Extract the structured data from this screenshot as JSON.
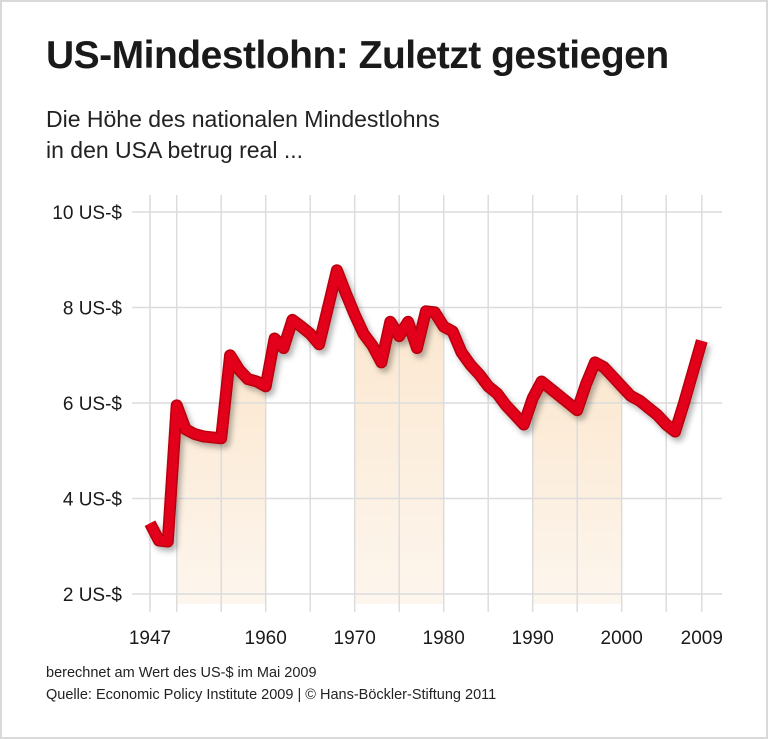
{
  "title": "US-Mindestlohn: Zuletzt gestiegen",
  "subtitle_lines": [
    "Die Höhe des nationalen Mindestlohns",
    "in den USA betrug real ..."
  ],
  "footer": {
    "note": "berechnet am Wert des US-$ im Mai 2009",
    "source": "Quelle: Economic Policy Institute 2009 | © Hans-Böckler-Stiftung 2011"
  },
  "colors": {
    "line": "#e2001a",
    "shade": "#fdeedd",
    "grid": "#dcdcdc"
  },
  "chart_data": {
    "type": "line",
    "ylim": [
      2,
      10
    ],
    "yticks": [
      2,
      4,
      6,
      8,
      10
    ],
    "ytick_labels": [
      "2 US-$",
      "4 US-$",
      "6 US-$",
      "8 US-$",
      "10 US-$"
    ],
    "xlim": [
      1947,
      2009
    ],
    "xtick_labels": [
      "1947",
      "1960",
      "1970",
      "1980",
      "1990",
      "2000",
      "2009"
    ],
    "xticks": [
      1947,
      1960,
      1970,
      1980,
      1990,
      2000,
      2009
    ],
    "grid_x": [
      1947,
      1950,
      1955,
      1960,
      1965,
      1970,
      1975,
      1980,
      1985,
      1990,
      1995,
      2000,
      2005,
      2009
    ],
    "grid": true,
    "shaded_ranges": [
      [
        1950,
        1960
      ],
      [
        1970,
        1980
      ],
      [
        1990,
        2000
      ]
    ],
    "x": [
      1947,
      1948,
      1949,
      1950,
      1951,
      1952,
      1953,
      1954,
      1955,
      1956,
      1957,
      1958,
      1959,
      1960,
      1961,
      1962,
      1963,
      1964,
      1965,
      1966,
      1967,
      1968,
      1969,
      1970,
      1971,
      1972,
      1973,
      1974,
      1975,
      1976,
      1977,
      1978,
      1979,
      1980,
      1981,
      1982,
      1983,
      1984,
      1985,
      1986,
      1987,
      1988,
      1989,
      1990,
      1991,
      1992,
      1993,
      1994,
      1995,
      1996,
      1997,
      1998,
      1999,
      2000,
      2001,
      2002,
      2003,
      2004,
      2005,
      2006,
      2007,
      2008,
      2009
    ],
    "values": [
      3.48,
      3.12,
      3.1,
      5.95,
      5.45,
      5.35,
      5.3,
      5.28,
      5.26,
      7.0,
      6.7,
      6.5,
      6.45,
      6.35,
      7.35,
      7.15,
      7.74,
      7.6,
      7.45,
      7.23,
      8.0,
      8.78,
      8.3,
      7.85,
      7.45,
      7.2,
      6.85,
      7.7,
      7.4,
      7.7,
      7.15,
      7.92,
      7.9,
      7.6,
      7.5,
      7.06,
      6.8,
      6.6,
      6.35,
      6.2,
      5.95,
      5.75,
      5.55,
      6.1,
      6.45,
      6.3,
      6.15,
      6.0,
      5.85,
      6.4,
      6.85,
      6.75,
      6.55,
      6.35,
      6.15,
      6.05,
      5.9,
      5.75,
      5.55,
      5.4,
      6.0,
      6.65,
      7.3
    ]
  }
}
